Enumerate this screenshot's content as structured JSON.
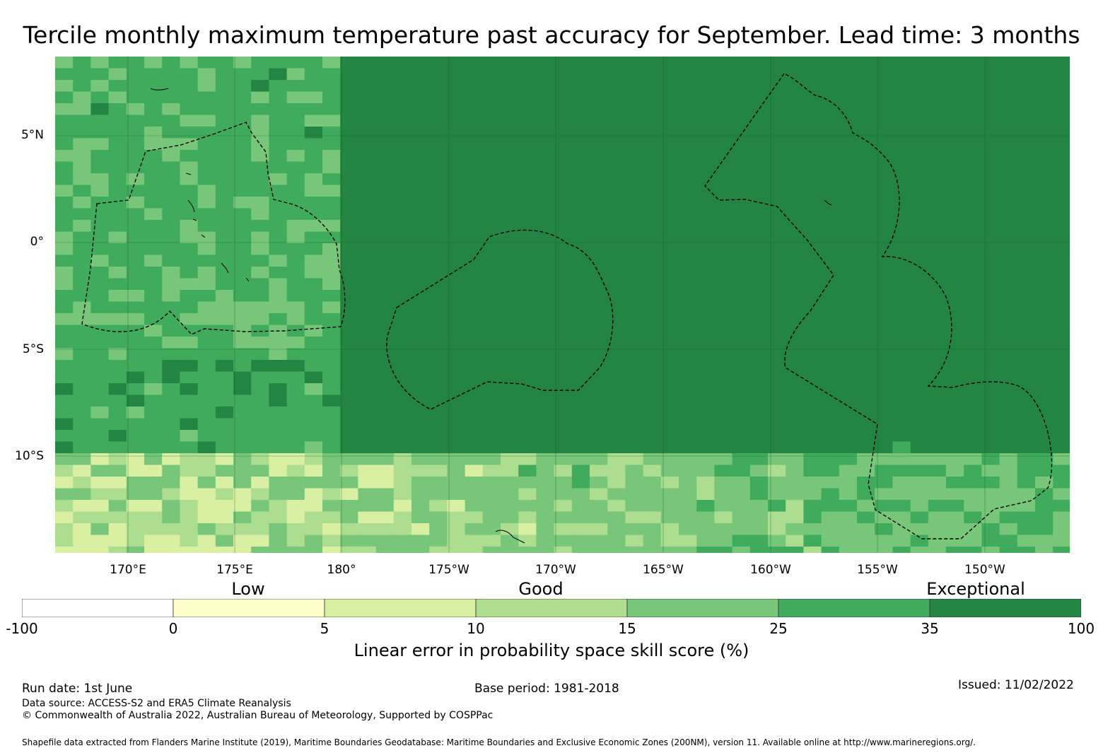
{
  "title": "Tercile monthly maximum temperature past accuracy for September. Lead time: 3 months",
  "map": {
    "lat_labels": [
      "5°N",
      "0°",
      "5°S",
      "10°S"
    ],
    "lon_labels": [
      "170°E",
      "175°E",
      "180°",
      "175°W",
      "170°W",
      "165°W",
      "160°W",
      "155°W",
      "150°W"
    ]
  },
  "legend": {
    "categories": [
      "Low",
      "Good",
      "Exceptional"
    ],
    "ticks": [
      "-100",
      "0",
      "5",
      "10",
      "15",
      "25",
      "35",
      "100"
    ],
    "colors": [
      "#ffffff",
      "#ffffcc",
      "#d9f0a3",
      "#addd8e",
      "#78c679",
      "#41ab5d",
      "#238443"
    ],
    "label": "Linear error in probability space skill score (%)"
  },
  "footer": {
    "run_date": "Run date: 1st June",
    "base_period": "Base period: 1981-2018",
    "issued": "Issued: 11/02/2022",
    "data_source": "Data source: ACCESS-S2 and ERA5 Climate Reanalysis",
    "copyright": "© Commonwealth of Australia 2022, Australian Bureau of Meteorology, Supported by COSPPac",
    "shapefile": "Shapefile data extracted from Flanders Marine Institute (2019), Maritime Boundaries Geodatabase: Maritime Boundaries and Exclusive Economic Zones (200NM), version 11. Available online at http://www.marineregions.org/."
  }
}
